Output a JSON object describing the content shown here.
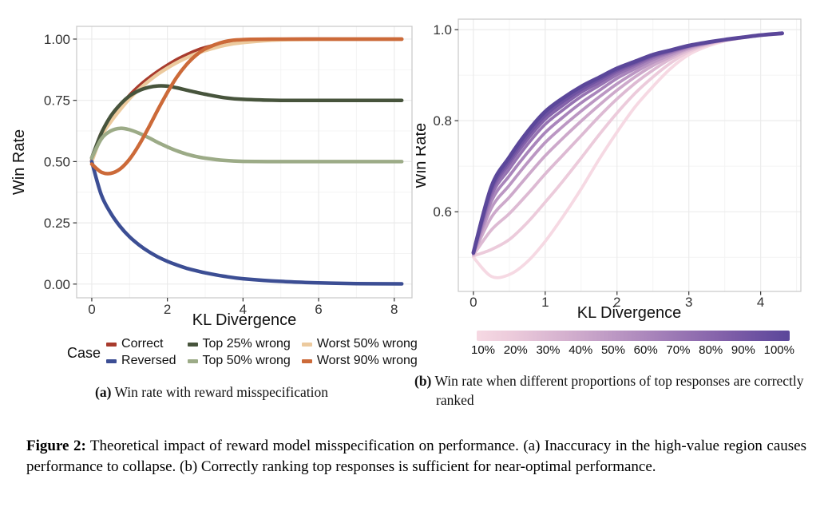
{
  "figure": {
    "caption_label": "Figure 2:",
    "caption_text": " Theoretical impact of reward model misspecification on performance. (a) Inaccuracy in the high-value region causes performance to collapse. (b) Correctly ranking top responses is sufficient for near-optimal performance."
  },
  "chart_data": [
    {
      "id": "a",
      "type": "line",
      "title": "",
      "xlabel": "KL Divergence",
      "ylabel": "Win Rate",
      "xlim": [
        -0.4,
        8.47
      ],
      "ylim": [
        -0.056,
        1.052
      ],
      "xticks": [
        0,
        2,
        4,
        6,
        8
      ],
      "xtick_labels": [
        "0",
        "2",
        "4",
        "6",
        "8"
      ],
      "yticks": [
        0,
        0.25,
        0.5,
        0.75,
        1.0
      ],
      "ytick_labels": [
        "0.00",
        "0.25",
        "0.50",
        "0.75",
        "1.00"
      ],
      "x_minor": [
        1,
        3,
        5,
        7
      ],
      "y_minor": [
        0.125,
        0.375,
        0.625,
        0.875
      ],
      "grid": true,
      "x": [
        0,
        0.25,
        0.5,
        0.75,
        1,
        1.25,
        1.5,
        1.75,
        2,
        2.25,
        2.5,
        2.75,
        3,
        3.5,
        4,
        5,
        6,
        7,
        8.2
      ],
      "series": [
        {
          "name": "Correct",
          "color": "#a83b2d",
          "width": 4.5,
          "values": [
            0.505,
            0.615,
            0.675,
            0.725,
            0.77,
            0.808,
            0.84,
            0.868,
            0.893,
            0.916,
            0.935,
            0.952,
            0.965,
            0.983,
            0.992,
            0.999,
            1.0,
            1.0,
            1.0
          ]
        },
        {
          "name": "Worst 50% wrong",
          "color": "#ecca9e",
          "width": 4.5,
          "values": [
            0.5,
            0.602,
            0.662,
            0.712,
            0.757,
            0.795,
            0.828,
            0.857,
            0.882,
            0.904,
            0.923,
            0.94,
            0.953,
            0.974,
            0.986,
            0.997,
            0.999,
            1.0,
            1.0
          ]
        },
        {
          "name": "Top 25% wrong",
          "color": "#47543c",
          "width": 4.5,
          "values": [
            0.515,
            0.615,
            0.685,
            0.733,
            0.768,
            0.79,
            0.803,
            0.809,
            0.808,
            0.801,
            0.792,
            0.783,
            0.775,
            0.761,
            0.754,
            0.75,
            0.75,
            0.75,
            0.75
          ]
        },
        {
          "name": "Top 50% wrong",
          "color": "#9cab87",
          "width": 4.5,
          "values": [
            0.515,
            0.592,
            0.625,
            0.636,
            0.63,
            0.616,
            0.598,
            0.578,
            0.56,
            0.544,
            0.531,
            0.521,
            0.514,
            0.505,
            0.501,
            0.5,
            0.5,
            0.5,
            0.5
          ]
        },
        {
          "name": "Reversed",
          "color": "#3c4e94",
          "width": 4.5,
          "values": [
            0.5,
            0.365,
            0.29,
            0.235,
            0.193,
            0.16,
            0.133,
            0.111,
            0.093,
            0.078,
            0.065,
            0.055,
            0.046,
            0.032,
            0.022,
            0.011,
            0.005,
            0.002,
            0.001
          ]
        },
        {
          "name": "Worst 90% wrong",
          "color": "#cc6a39",
          "width": 4.5,
          "values": [
            0.49,
            0.457,
            0.452,
            0.47,
            0.51,
            0.568,
            0.638,
            0.712,
            0.782,
            0.845,
            0.895,
            0.933,
            0.96,
            0.989,
            0.998,
            1.0,
            1.0,
            1.0,
            1.0
          ]
        }
      ],
      "legend": {
        "title": "Case",
        "position": "bottom",
        "order": [
          "Correct",
          "Top 25% wrong",
          "Worst 50% wrong",
          "Reversed",
          "Top 50% wrong",
          "Worst 90% wrong"
        ]
      },
      "caption_label": "(a)",
      "caption": " Win rate with reward misspecification"
    },
    {
      "id": "b",
      "type": "line",
      "title": "",
      "xlabel": "KL Divergence",
      "ylabel": "Win Rate",
      "xlim": [
        -0.21,
        4.56
      ],
      "ylim": [
        0.425,
        1.023
      ],
      "xticks": [
        0,
        1,
        2,
        3,
        4
      ],
      "xtick_labels": [
        "0",
        "1",
        "2",
        "3",
        "4"
      ],
      "yticks": [
        0.6,
        0.8,
        1.0
      ],
      "ytick_labels": [
        "0.6",
        "0.8",
        "1.0"
      ],
      "x_minor": [
        0.5,
        1.5,
        2.5,
        3.5,
        4.5
      ],
      "y_minor": [
        0.5,
        0.7,
        0.9
      ],
      "grid": true,
      "x": [
        0,
        0.25,
        0.5,
        0.75,
        1,
        1.25,
        1.5,
        1.75,
        2,
        2.25,
        2.5,
        2.75,
        3,
        3.25,
        3.5,
        3.75,
        4,
        4.3
      ],
      "series": [
        {
          "name": "10%",
          "color": "#f6d9e3",
          "width": 3.8,
          "values": [
            0.5,
            0.458,
            0.462,
            0.49,
            0.535,
            0.59,
            0.65,
            0.715,
            0.775,
            0.83,
            0.875,
            0.915,
            0.945,
            0.963,
            0.975,
            0.982,
            0.987,
            0.991
          ]
        },
        {
          "name": "20%",
          "color": "#eccbdb",
          "width": 3.8,
          "values": [
            0.503,
            0.517,
            0.539,
            0.576,
            0.621,
            0.668,
            0.718,
            0.769,
            0.817,
            0.86,
            0.896,
            0.927,
            0.951,
            0.966,
            0.976,
            0.982,
            0.987,
            0.991
          ]
        },
        {
          "name": "30%",
          "color": "#ddbad3",
          "width": 3.8,
          "values": [
            0.505,
            0.56,
            0.596,
            0.638,
            0.683,
            0.725,
            0.767,
            0.809,
            0.848,
            0.882,
            0.911,
            0.936,
            0.955,
            0.968,
            0.977,
            0.983,
            0.988,
            0.991
          ]
        },
        {
          "name": "40%",
          "color": "#cda9cb",
          "width": 3.8,
          "values": [
            0.507,
            0.588,
            0.632,
            0.678,
            0.723,
            0.762,
            0.799,
            0.834,
            0.867,
            0.896,
            0.921,
            0.941,
            0.958,
            0.969,
            0.977,
            0.983,
            0.988,
            0.992
          ]
        },
        {
          "name": "50%",
          "color": "#bb97c3",
          "width": 3.8,
          "values": [
            0.508,
            0.608,
            0.658,
            0.707,
            0.752,
            0.788,
            0.821,
            0.852,
            0.881,
            0.906,
            0.928,
            0.945,
            0.96,
            0.97,
            0.977,
            0.983,
            0.988,
            0.992
          ]
        },
        {
          "name": "60%",
          "color": "#a985bb",
          "width": 3.8,
          "values": [
            0.508,
            0.623,
            0.679,
            0.729,
            0.774,
            0.808,
            0.839,
            0.866,
            0.893,
            0.914,
            0.934,
            0.949,
            0.962,
            0.971,
            0.978,
            0.983,
            0.988,
            0.992
          ]
        },
        {
          "name": "70%",
          "color": "#9673b2",
          "width": 3.8,
          "values": [
            0.509,
            0.635,
            0.694,
            0.747,
            0.792,
            0.824,
            0.853,
            0.877,
            0.901,
            0.92,
            0.938,
            0.951,
            0.963,
            0.971,
            0.978,
            0.983,
            0.988,
            0.992
          ]
        },
        {
          "name": "80%",
          "color": "#8462aa",
          "width": 3.8,
          "values": [
            0.509,
            0.643,
            0.705,
            0.758,
            0.803,
            0.834,
            0.862,
            0.884,
            0.907,
            0.924,
            0.941,
            0.953,
            0.964,
            0.971,
            0.978,
            0.983,
            0.988,
            0.992
          ]
        },
        {
          "name": "90%",
          "color": "#6f53a2",
          "width": 3.8,
          "values": [
            0.51,
            0.649,
            0.712,
            0.766,
            0.811,
            0.842,
            0.868,
            0.89,
            0.911,
            0.927,
            0.943,
            0.954,
            0.964,
            0.972,
            0.978,
            0.983,
            0.988,
            0.992
          ]
        },
        {
          "name": "100%",
          "color": "#5b479a",
          "width": 4.8,
          "values": [
            0.51,
            0.655,
            0.72,
            0.775,
            0.82,
            0.85,
            0.875,
            0.895,
            0.915,
            0.93,
            0.945,
            0.955,
            0.965,
            0.972,
            0.978,
            0.983,
            0.988,
            0.992
          ]
        }
      ],
      "colorbar": {
        "labels": [
          "10%",
          "20%",
          "30%",
          "40%",
          "50%",
          "60%",
          "70%",
          "80%",
          "90%",
          "100%"
        ],
        "colors": [
          "#f6d9e3",
          "#eccbdb",
          "#ddbad3",
          "#cda9cb",
          "#bb97c3",
          "#a985bb",
          "#9673b2",
          "#8462aa",
          "#6f53a2",
          "#5b479a"
        ]
      },
      "caption_label": "(b)",
      "caption": " Win rate when different proportions of top responses are correctly ranked"
    }
  ]
}
